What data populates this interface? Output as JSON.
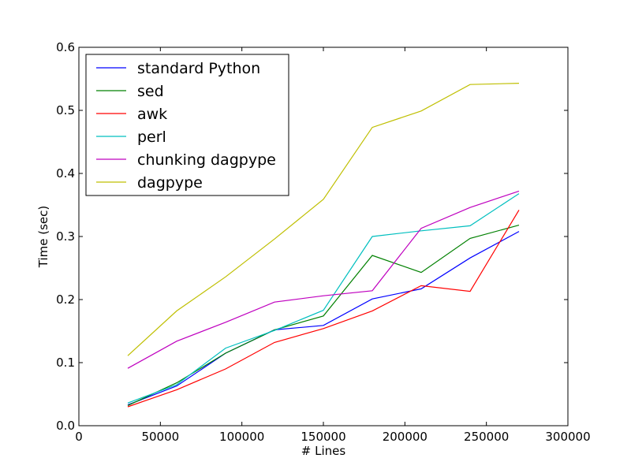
{
  "chart_data": {
    "type": "line",
    "title": "",
    "xlabel": "# Lines",
    "ylabel": "Time (sec)",
    "xlim": [
      0,
      300000
    ],
    "ylim": [
      0.0,
      0.6
    ],
    "xticks": [
      0,
      50000,
      100000,
      150000,
      200000,
      250000,
      300000
    ],
    "xtick_labels": [
      "0",
      "50000",
      "100000",
      "150000",
      "200000",
      "250000",
      "300000"
    ],
    "yticks": [
      0.0,
      0.1,
      0.2,
      0.3,
      0.4,
      0.5,
      0.6
    ],
    "ytick_labels": [
      "0.0",
      "0.1",
      "0.2",
      "0.3",
      "0.4",
      "0.5",
      "0.6"
    ],
    "grid": false,
    "legend_position": "top-left",
    "x": [
      30000,
      60000,
      90000,
      120000,
      150000,
      180000,
      210000,
      240000,
      270000
    ],
    "series": [
      {
        "name": "standard Python",
        "color": "#0000ff",
        "values": [
          0.033,
          0.063,
          0.115,
          0.152,
          0.159,
          0.201,
          0.217,
          0.266,
          0.308
        ]
      },
      {
        "name": "sed",
        "color": "#008000",
        "values": [
          0.032,
          0.068,
          0.115,
          0.152,
          0.174,
          0.27,
          0.243,
          0.297,
          0.318
        ]
      },
      {
        "name": "awk",
        "color": "#ff0000",
        "values": [
          0.03,
          0.057,
          0.09,
          0.132,
          0.154,
          0.182,
          0.222,
          0.213,
          0.342
        ]
      },
      {
        "name": "perl",
        "color": "#00bfbf",
        "values": [
          0.036,
          0.065,
          0.123,
          0.151,
          0.183,
          0.3,
          0.309,
          0.317,
          0.368
        ]
      },
      {
        "name": "chunking dagpype",
        "color": "#bf00bf",
        "values": [
          0.091,
          0.134,
          0.164,
          0.196,
          0.206,
          0.214,
          0.313,
          0.346,
          0.372
        ]
      },
      {
        "name": "dagpype",
        "color": "#bfbf00",
        "values": [
          0.111,
          0.182,
          0.236,
          0.296,
          0.359,
          0.473,
          0.499,
          0.541,
          0.543
        ]
      }
    ]
  }
}
